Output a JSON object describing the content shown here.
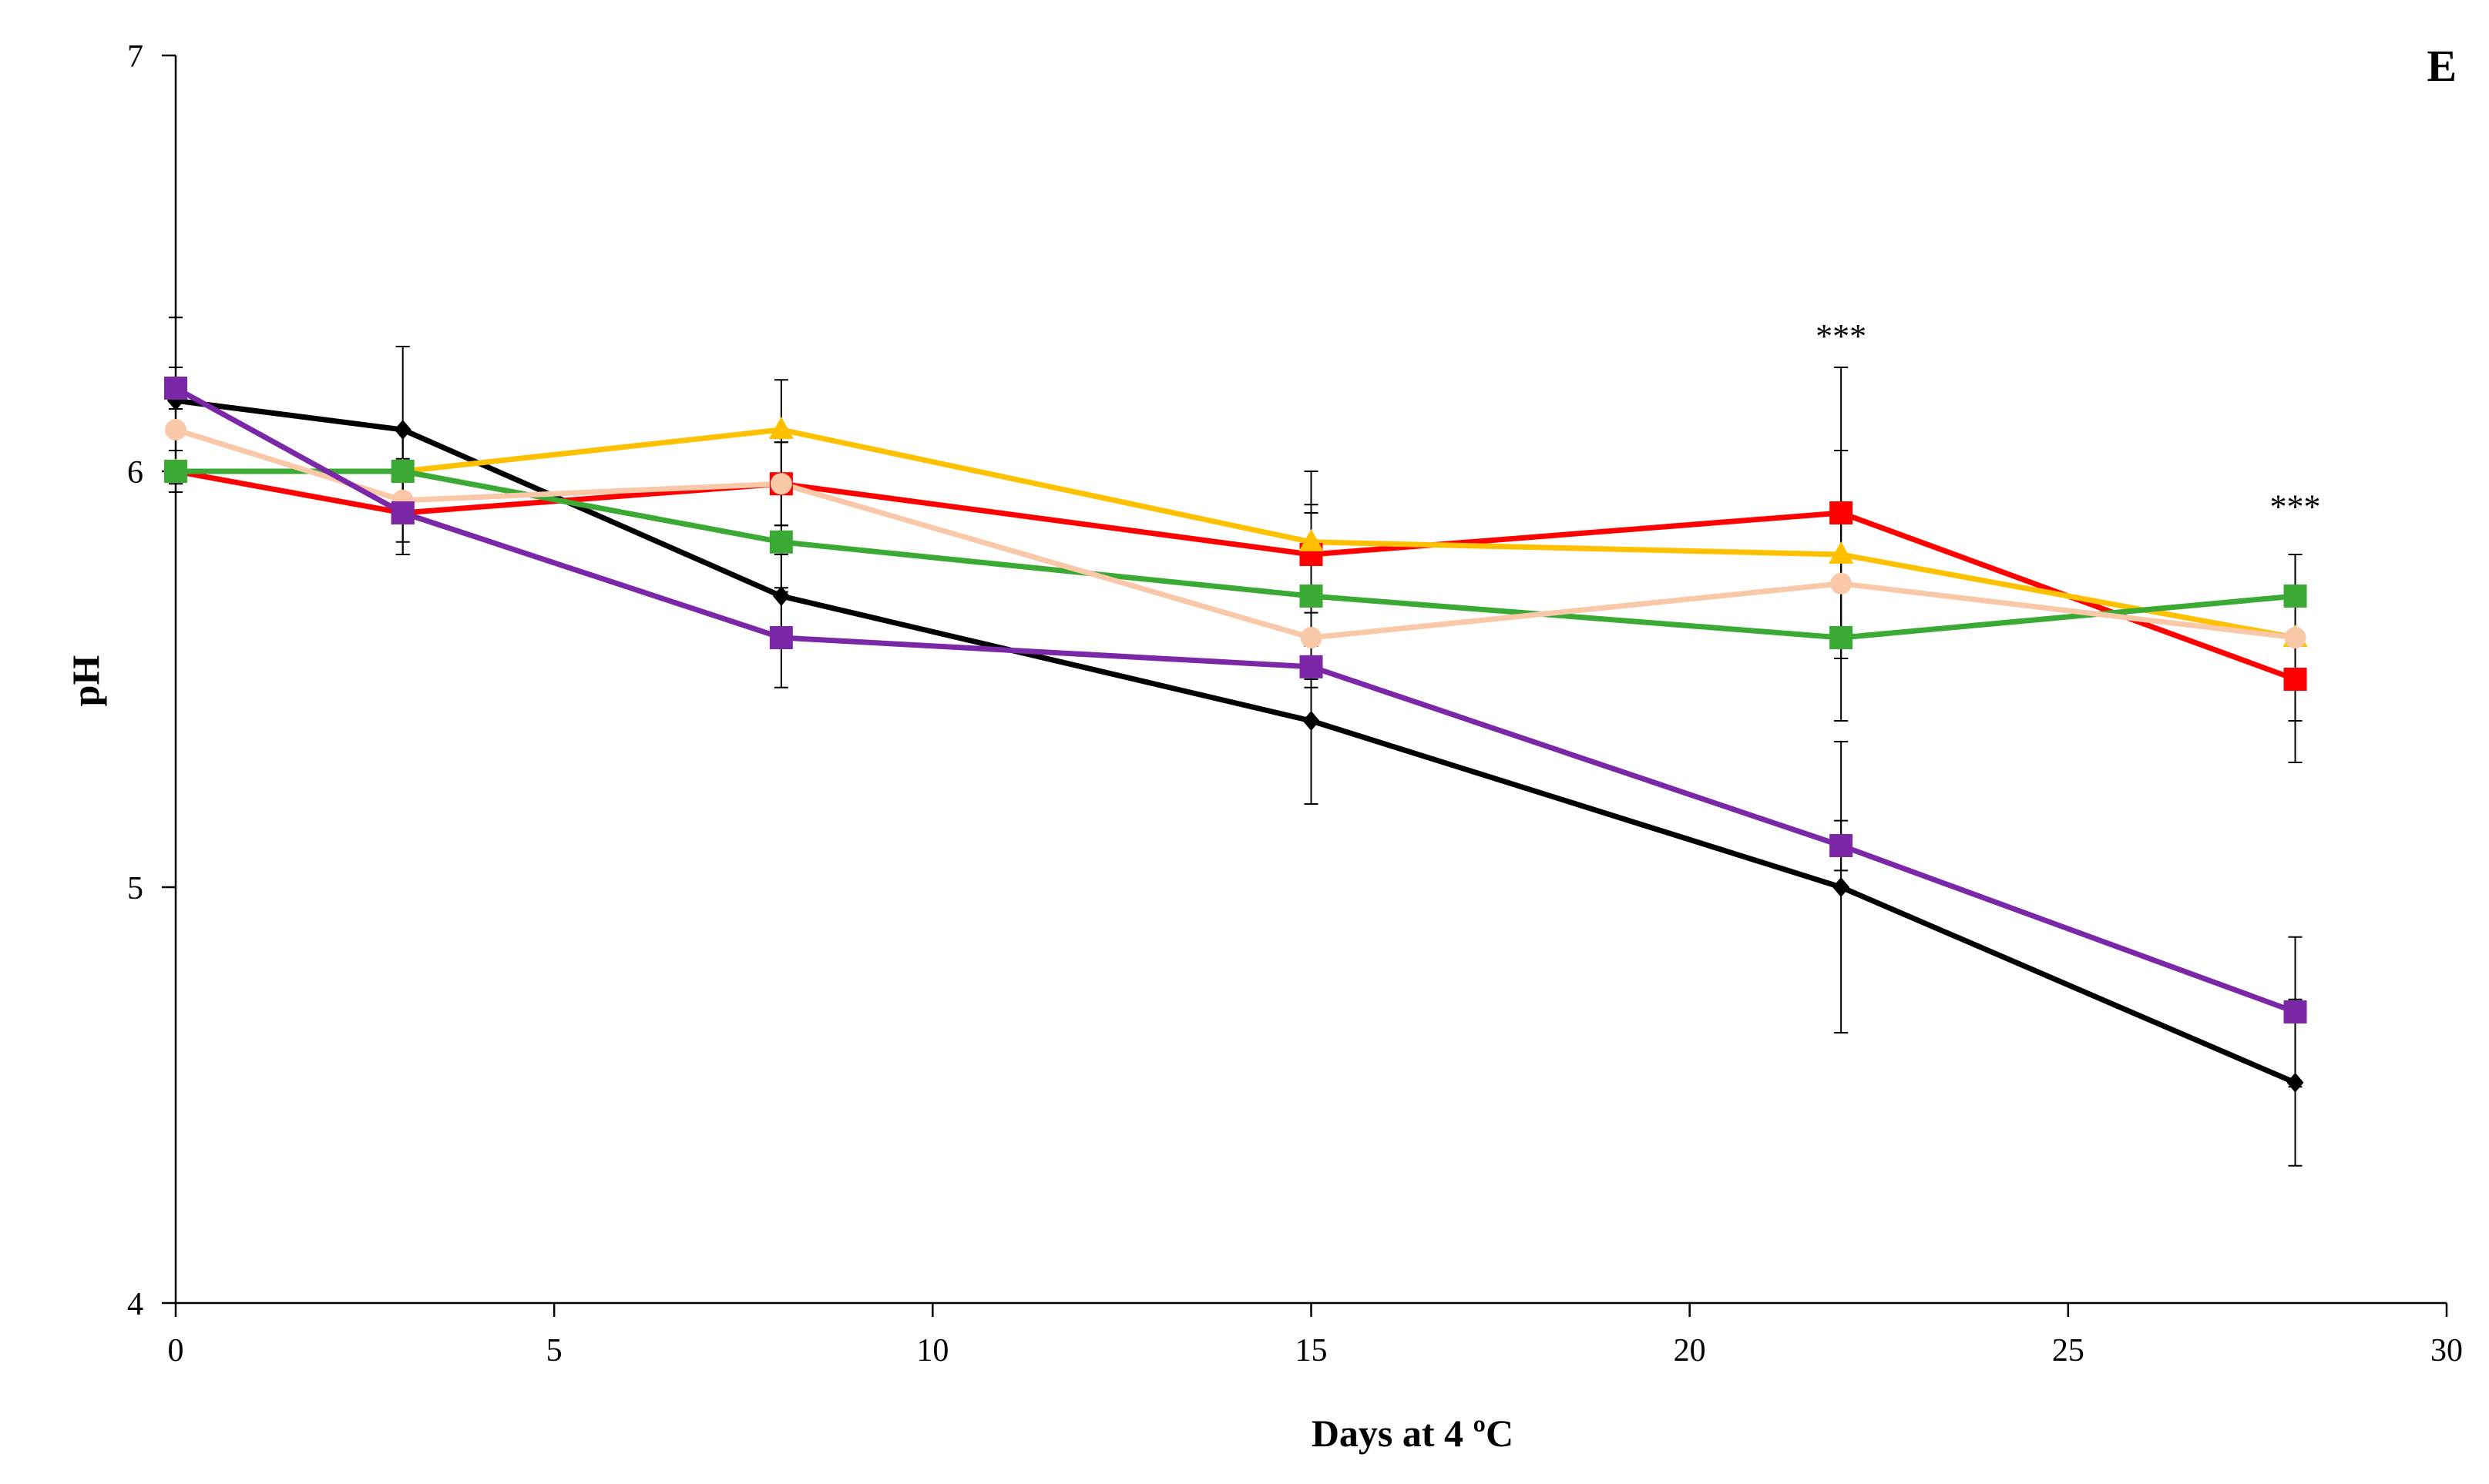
{
  "chart_data": {
    "type": "line",
    "panel_label": "E",
    "title": "",
    "xlabel": "Days at 4 ºC",
    "ylabel": "pH",
    "xlim": [
      0,
      30
    ],
    "ylim": [
      4,
      7
    ],
    "xticks": [
      0,
      5,
      10,
      15,
      20,
      25,
      30
    ],
    "yticks": [
      4,
      5,
      6,
      7
    ],
    "x": [
      0,
      3,
      8,
      15,
      22,
      28
    ],
    "grid": false,
    "series": [
      {
        "name": "black",
        "color": "#000000",
        "marker": "diamond",
        "values": [
          6.17,
          6.1,
          5.7,
          5.4,
          5.0,
          4.53
        ],
        "errors": [
          0.2,
          0.2,
          0.1,
          0.2,
          0.35,
          0.2
        ]
      },
      {
        "name": "red",
        "color": "#ff0000",
        "marker": "square",
        "values": [
          6.0,
          5.9,
          5.97,
          5.8,
          5.9,
          5.5
        ],
        "errors": [
          0.05,
          0.1,
          0.1,
          0.12,
          0.35,
          0.2
        ]
      },
      {
        "name": "yellow",
        "color": "#ffc000",
        "marker": "triangle",
        "values": [
          6.0,
          6.0,
          6.1,
          5.83,
          5.8,
          5.6
        ],
        "errors": [
          0.05,
          0.1,
          0.12,
          0.17,
          0.25,
          0.2
        ]
      },
      {
        "name": "green",
        "color": "#3aaa35",
        "marker": "square",
        "values": [
          6.0,
          6.0,
          5.83,
          5.7,
          5.6,
          5.7
        ],
        "errors": [
          0.05,
          0.1,
          0.12,
          0.2,
          0.2,
          0.1
        ]
      },
      {
        "name": "peach",
        "color": "#f8c8a8",
        "marker": "circle",
        "values": [
          6.1,
          5.93,
          5.97,
          5.6,
          5.73,
          5.6
        ],
        "errors": [
          0.15,
          0.1,
          0.1,
          0.1,
          0.15,
          0.1
        ]
      },
      {
        "name": "purple",
        "color": "#7a28a8",
        "marker": "square",
        "values": [
          6.2,
          5.9,
          5.6,
          5.53,
          5.1,
          4.7
        ],
        "errors": [
          0.05,
          0.1,
          0.12,
          0.05,
          0.06,
          0.18
        ]
      }
    ],
    "annotations": [
      {
        "text": "***",
        "x": 22,
        "y": 6.35
      },
      {
        "text": "***",
        "x": 28,
        "y": 5.94
      }
    ]
  }
}
